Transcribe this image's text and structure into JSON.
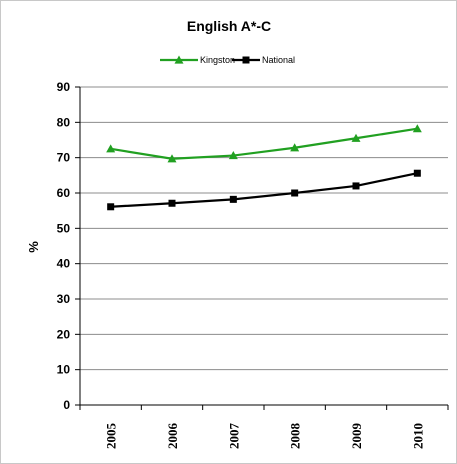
{
  "chart_data": {
    "type": "line",
    "title": "English A*-C",
    "xlabel": "",
    "ylabel": "%",
    "categories": [
      "2005",
      "2006",
      "2007",
      "2008",
      "2009",
      "2010"
    ],
    "series": [
      {
        "name": "Kingston",
        "color": "#21a021",
        "marker": "triangle",
        "values": [
          72.5,
          69.7,
          70.6,
          72.8,
          75.5,
          78.2
        ]
      },
      {
        "name": "National",
        "color": "#000000",
        "marker": "square",
        "values": [
          56.1,
          57.1,
          58.2,
          60.0,
          62.0,
          65.6
        ]
      }
    ],
    "ylim": [
      0,
      90
    ],
    "yticks": [
      0,
      10,
      20,
      30,
      40,
      50,
      60,
      70,
      80,
      90
    ],
    "grid": "horizontal",
    "legend_position": "top-center"
  }
}
